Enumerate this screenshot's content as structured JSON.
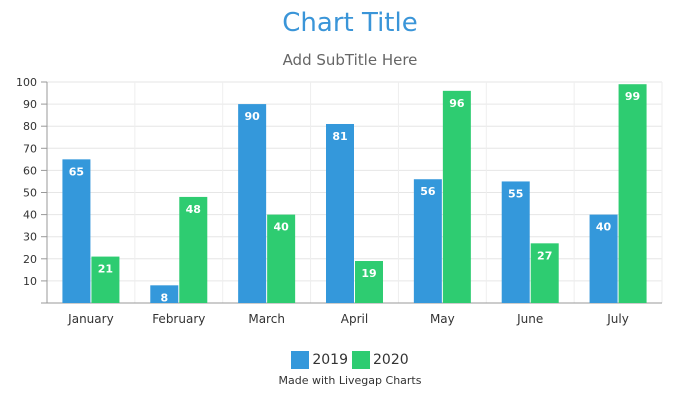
{
  "chart_data": {
    "type": "bar",
    "title": "Chart Title",
    "subtitle": "Add SubTitle Here",
    "categories": [
      "January",
      "February",
      "March",
      "April",
      "May",
      "June",
      "July"
    ],
    "series": [
      {
        "name": "2019",
        "color": "#3498db",
        "values": [
          65,
          8,
          90,
          81,
          56,
          55,
          40
        ]
      },
      {
        "name": "2020",
        "color": "#2ecc71",
        "values": [
          21,
          48,
          40,
          19,
          96,
          27,
          99
        ]
      }
    ],
    "yticks": [
      "10",
      "20",
      "30",
      "40",
      "50",
      "60",
      "70",
      "80",
      "90",
      "100"
    ],
    "ylim": [
      0,
      100
    ],
    "grid": true,
    "legend_position": "bottom"
  },
  "credit": "Made with Livegap Charts"
}
